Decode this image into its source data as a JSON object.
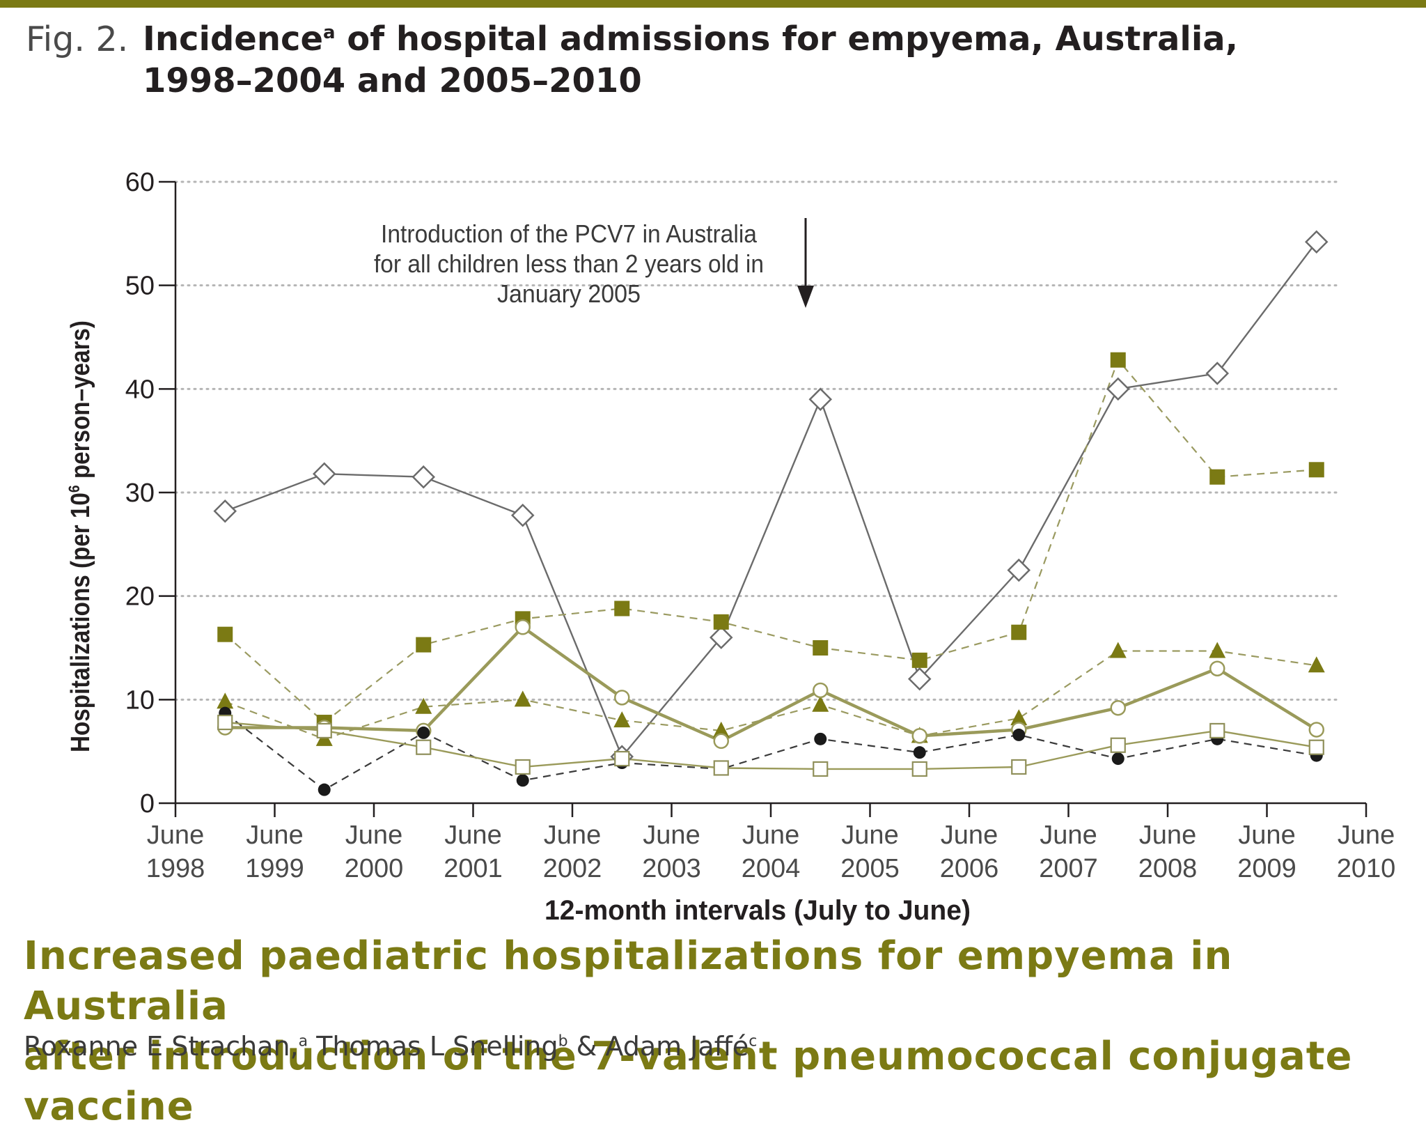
{
  "header": {
    "fig_label": "Fig. 2.",
    "title_part1": "Incidence",
    "title_sup": "a",
    "title_part2": " of hospital admissions for empyema, Australia, 1998–2004 and 2005–2010"
  },
  "colors": {
    "accent": "#7b7a14",
    "axis": "#231f20",
    "grid": "#b5b5b5",
    "series_line_dark": "#6b6b6b",
    "series_line_olive": "#9a9a5a"
  },
  "chart_data": {
    "type": "line",
    "title": "Incidence of hospital admissions for empyema, Australia, 1998–2004 and 2005–2010",
    "xlabel": "12-month intervals (July to June)",
    "ylabel_main": "Hospitalizations (per 10",
    "ylabel_sup": "6",
    "ylabel_tail": " person–years)",
    "ylim": [
      0,
      60
    ],
    "y_ticks": [
      0,
      10,
      20,
      30,
      40,
      50,
      60
    ],
    "x_ticks": [
      {
        "month": "June",
        "year": "1998"
      },
      {
        "month": "June",
        "year": "1999"
      },
      {
        "month": "June",
        "year": "2000"
      },
      {
        "month": "June",
        "year": "2001"
      },
      {
        "month": "June",
        "year": "2002"
      },
      {
        "month": "June",
        "year": "2003"
      },
      {
        "month": "June",
        "year": "2004"
      },
      {
        "month": "June",
        "year": "2005"
      },
      {
        "month": "June",
        "year": "2006"
      },
      {
        "month": "June",
        "year": "2007"
      },
      {
        "month": "June",
        "year": "2008"
      },
      {
        "month": "June",
        "year": "2009"
      },
      {
        "month": "June",
        "year": "2010"
      }
    ],
    "categories": [
      "1998–1999",
      "1999–2000",
      "2000–2001",
      "2001–2002",
      "2002–2003",
      "2003–2004",
      "2004–2005",
      "2005–2006",
      "2006–2007",
      "2007–2008",
      "2008–2009",
      "2009–2010"
    ],
    "grid": "horizontal dotted",
    "annotation": {
      "text_lines": [
        "Introduction of the PCV7 in Australia",
        "for all children less than 2 years old in",
        "January 2005"
      ],
      "points_to": "January 2005"
    },
    "series": [
      {
        "name": "open-diamond",
        "marker": "diamond-open",
        "line": "solid",
        "color": "#6b6b6b",
        "values": [
          28.2,
          31.8,
          31.5,
          27.8,
          4.5,
          16.0,
          39.0,
          12.0,
          22.5,
          40.0,
          41.5,
          54.2
        ]
      },
      {
        "name": "filled-square",
        "marker": "square-filled",
        "line": "dashed",
        "color": "#7b7a14",
        "values": [
          16.3,
          7.8,
          15.3,
          17.8,
          18.8,
          17.5,
          15.0,
          13.8,
          16.5,
          42.8,
          31.5,
          32.2
        ]
      },
      {
        "name": "filled-triangle",
        "marker": "triangle-filled",
        "line": "dashed",
        "color": "#7b7a14",
        "values": [
          9.8,
          6.2,
          9.3,
          10.0,
          8.0,
          7.0,
          9.5,
          6.5,
          8.2,
          14.7,
          14.7,
          13.3
        ]
      },
      {
        "name": "open-circle",
        "marker": "circle-open",
        "line": "solid-thick",
        "color": "#9a9a5a",
        "values": [
          7.3,
          7.3,
          7.0,
          17.0,
          10.2,
          6.0,
          10.9,
          6.5,
          7.1,
          9.2,
          13.0,
          7.1
        ]
      },
      {
        "name": "filled-circle",
        "marker": "circle-filled",
        "line": "dashed",
        "color": "#231f20",
        "values": [
          8.7,
          1.3,
          6.8,
          2.2,
          3.9,
          3.3,
          6.2,
          4.9,
          6.6,
          4.3,
          6.2,
          4.6
        ]
      },
      {
        "name": "open-square",
        "marker": "square-open",
        "line": "solid",
        "color": "#9a9a5a",
        "values": [
          7.8,
          7.0,
          5.4,
          3.5,
          4.3,
          3.4,
          3.3,
          3.3,
          3.5,
          5.6,
          7.0,
          5.4
        ]
      }
    ]
  },
  "footer": {
    "headline_line1": "Increased paediatric hospitalizations for empyema in Australia",
    "headline_line2": "after introduction of the 7-valent pneumococcal conjugate vaccine",
    "authors": [
      {
        "name": "Roxanne E Strachan,",
        "sup": "a"
      },
      {
        "name": " Thomas L Snelling",
        "sup": "b"
      },
      {
        "name": " & Adam Jaffé",
        "sup": "c"
      }
    ]
  }
}
